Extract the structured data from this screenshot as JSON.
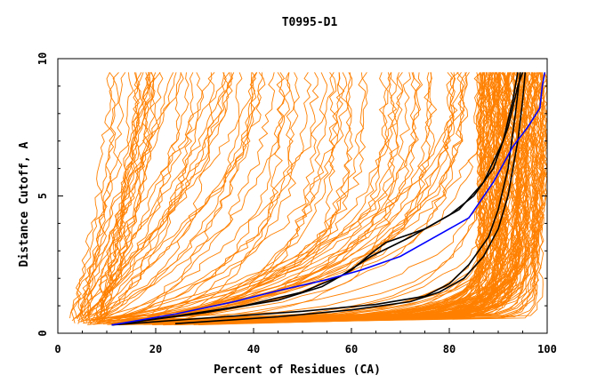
{
  "chart_data": {
    "type": "line",
    "title": "T0995-D1",
    "xlabel": "Percent of Residues (CA)",
    "ylabel": "Distance Cutoff, A",
    "xlim": [
      0,
      100
    ],
    "ylim": [
      0,
      10
    ],
    "x_ticks": [
      "0",
      "20",
      "40",
      "60",
      "80",
      "100"
    ],
    "y_ticks": [
      "0",
      "5",
      "10"
    ],
    "grid": false,
    "legend": "none",
    "colors": {
      "background_models": "#ff8000",
      "highlighted_models": "#000000",
      "reference_model": "#0000ff"
    },
    "series": [
      {
        "style": "black",
        "points": [
          [
            11,
            0.3
          ],
          [
            30,
            0.55
          ],
          [
            50,
            0.8
          ],
          [
            65,
            1.05
          ],
          [
            75,
            1.35
          ],
          [
            80,
            1.8
          ],
          [
            84,
            2.5
          ],
          [
            88,
            3.5
          ],
          [
            90,
            4.5
          ],
          [
            92,
            6
          ],
          [
            93.5,
            8
          ],
          [
            94.5,
            9.5
          ]
        ]
      },
      {
        "style": "black",
        "points": [
          [
            24,
            0.35
          ],
          [
            45,
            0.6
          ],
          [
            60,
            0.85
          ],
          [
            72,
            1.15
          ],
          [
            78,
            1.5
          ],
          [
            83,
            2.0
          ],
          [
            87,
            2.8
          ],
          [
            90,
            3.8
          ],
          [
            92,
            5
          ],
          [
            94,
            7
          ],
          [
            95,
            8.5
          ],
          [
            95.5,
            9.5
          ]
        ]
      },
      {
        "style": "black",
        "points": [
          [
            11,
            0.3
          ],
          [
            25,
            0.65
          ],
          [
            38,
            1.0
          ],
          [
            50,
            1.5
          ],
          [
            58,
            2.1
          ],
          [
            64,
            2.8
          ],
          [
            72,
            3.5
          ],
          [
            80,
            4.3
          ],
          [
            85,
            5.0
          ],
          [
            89,
            6.0
          ],
          [
            92,
            7.5
          ],
          [
            94,
            9.0
          ],
          [
            95,
            9.5
          ]
        ]
      },
      {
        "style": "black",
        "points": [
          [
            11,
            0.3
          ],
          [
            30,
            0.75
          ],
          [
            45,
            1.2
          ],
          [
            54,
            1.7
          ],
          [
            60,
            2.3
          ],
          [
            64,
            2.9
          ],
          [
            67,
            3.3
          ],
          [
            75,
            3.8
          ],
          [
            82,
            4.5
          ],
          [
            87,
            5.5
          ],
          [
            91,
            7.0
          ],
          [
            93,
            8.5
          ],
          [
            94,
            9.5
          ]
        ]
      },
      {
        "style": "blue",
        "points": [
          [
            11,
            0.3
          ],
          [
            24,
            0.7
          ],
          [
            36,
            1.15
          ],
          [
            45,
            1.55
          ],
          [
            55,
            1.95
          ],
          [
            62,
            2.3
          ],
          [
            70,
            2.8
          ],
          [
            76,
            3.4
          ],
          [
            84,
            4.2
          ],
          [
            89,
            5.5
          ],
          [
            93,
            6.8
          ],
          [
            96,
            7.5
          ],
          [
            98.5,
            8.2
          ],
          [
            99,
            9.0
          ],
          [
            99.5,
            9.5
          ]
        ]
      }
    ]
  }
}
